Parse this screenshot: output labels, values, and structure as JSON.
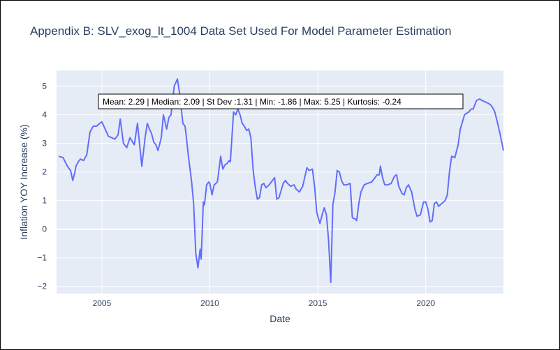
{
  "title": "Appendix B: SLV_exog_lt_1004 Data Set Used For Model Parameter Estimation",
  "chart_data": {
    "type": "line",
    "title": "Appendix B: SLV_exog_lt_1004 Data Set Used For Model Parameter Estimation",
    "xlabel": "Date",
    "ylabel": "Inflation YOY Increase (%)",
    "xlim": [
      2002.9,
      2023.6
    ],
    "ylim": [
      -2.25,
      5.55
    ],
    "xticks": [
      2005,
      2010,
      2015,
      2020
    ],
    "xtick_labels": [
      "2005",
      "2010",
      "2015",
      "2020"
    ],
    "yticks": [
      -2,
      -1,
      0,
      1,
      2,
      3,
      4,
      5
    ],
    "ytick_labels": [
      "−2",
      "−1",
      "0",
      "1",
      "2",
      "3",
      "4",
      "5"
    ],
    "grid": true,
    "legend": "none",
    "line_color": "#636efa",
    "plot_bgcolor": "#e5ecf6",
    "annotation": "Mean: 2.29 | Median: 2.09 | St Dev :1.31 | Min: -1.86 | Max: 5.25 | Kurtosis: -0.24",
    "series": [
      {
        "x": [
          2003.0,
          2003.2,
          2003.4,
          2003.55,
          2003.65,
          2003.75,
          2003.8,
          2003.9,
          2004.0,
          2004.15,
          2004.3,
          2004.45,
          2004.6,
          2004.75,
          2004.9,
          2005.0,
          2005.15,
          2005.3,
          2005.45,
          2005.6,
          2005.75,
          2005.85,
          2006.0,
          2006.15,
          2006.3,
          2006.5,
          2006.65,
          2006.85,
          2007.0,
          2007.1,
          2007.2,
          2007.3,
          2007.4,
          2007.5,
          2007.6,
          2007.75,
          2007.85,
          2008.0,
          2008.1,
          2008.2,
          2008.35,
          2008.5,
          2008.6,
          2008.75,
          2008.85,
          2008.9,
          2009.0,
          2009.15,
          2009.25,
          2009.35,
          2009.45,
          2009.55,
          2009.6,
          2009.7,
          2009.75,
          2009.85,
          2009.95,
          2010.0,
          2010.1,
          2010.2,
          2010.35,
          2010.5,
          2010.6,
          2010.7,
          2010.8,
          2010.9,
          2010.95,
          2011.1,
          2011.2,
          2011.3,
          2011.4,
          2011.5,
          2011.6,
          2011.7,
          2011.8,
          2011.9,
          2012.0,
          2012.1,
          2012.2,
          2012.3,
          2012.4,
          2012.5,
          2012.6,
          2012.75,
          2012.9,
          2013.0,
          2013.1,
          2013.2,
          2013.4,
          2013.5,
          2013.6,
          2013.75,
          2013.9,
          2014.0,
          2014.15,
          2014.3,
          2014.5,
          2014.6,
          2014.75,
          2014.85,
          2014.95,
          2015.0,
          2015.1,
          2015.2,
          2015.3,
          2015.4,
          2015.5,
          2015.6,
          2015.7,
          2015.8,
          2015.9,
          2016.0,
          2016.1,
          2016.2,
          2016.35,
          2016.5,
          2016.6,
          2016.75,
          2016.8,
          2016.9,
          2017.0,
          2017.15,
          2017.3,
          2017.5,
          2017.6,
          2017.75,
          2017.85,
          2017.9,
          2018.0,
          2018.1,
          2018.25,
          2018.4,
          2018.55,
          2018.65,
          2018.75,
          2018.9,
          2019.0,
          2019.1,
          2019.2,
          2019.35,
          2019.5,
          2019.6,
          2019.75,
          2019.9,
          2020.0,
          2020.1,
          2020.2,
          2020.3,
          2020.4,
          2020.5,
          2020.6,
          2020.75,
          2020.9,
          2021.0,
          2021.1,
          2021.2,
          2021.35,
          2021.5,
          2021.6,
          2021.7,
          2021.8,
          2021.9,
          2022.0,
          2022.1,
          2022.2,
          2022.35,
          2022.5,
          2022.6,
          2022.75,
          2022.9,
          2023.0,
          2023.1,
          2023.2,
          2023.3,
          2023.45,
          2023.6
        ],
        "y": [
          2.55,
          2.5,
          2.2,
          2.05,
          1.7,
          2.0,
          2.2,
          2.35,
          2.45,
          2.4,
          2.6,
          3.4,
          3.6,
          3.6,
          3.7,
          3.75,
          3.5,
          3.25,
          3.2,
          3.15,
          3.3,
          3.85,
          3.0,
          2.85,
          3.2,
          2.95,
          3.7,
          2.2,
          3.2,
          3.7,
          3.5,
          3.35,
          3.05,
          2.95,
          2.75,
          3.2,
          4.0,
          3.5,
          3.9,
          4.0,
          5.0,
          5.25,
          4.75,
          3.7,
          3.6,
          3.3,
          2.6,
          1.7,
          0.9,
          -0.85,
          -1.35,
          -0.7,
          -1.05,
          0.95,
          0.85,
          1.55,
          1.65,
          1.6,
          1.2,
          1.55,
          1.65,
          2.55,
          2.1,
          2.25,
          2.3,
          2.4,
          2.35,
          4.1,
          4.0,
          4.2,
          4.0,
          3.7,
          3.6,
          3.45,
          3.5,
          3.2,
          2.1,
          1.5,
          1.05,
          1.1,
          1.55,
          1.6,
          1.45,
          1.55,
          1.7,
          1.8,
          1.05,
          1.1,
          1.6,
          1.7,
          1.6,
          1.5,
          1.55,
          1.4,
          1.3,
          1.5,
          2.15,
          2.05,
          2.1,
          1.5,
          0.6,
          0.45,
          0.2,
          0.5,
          0.75,
          0.5,
          -0.4,
          -1.86,
          0.85,
          1.3,
          2.05,
          2.0,
          1.7,
          1.55,
          1.55,
          1.6,
          0.4,
          0.35,
          0.3,
          0.9,
          1.3,
          1.55,
          1.6,
          1.65,
          1.75,
          1.9,
          1.9,
          2.2,
          1.8,
          1.55,
          1.55,
          1.6,
          1.85,
          1.9,
          1.5,
          1.25,
          1.2,
          1.45,
          1.55,
          1.3,
          0.7,
          0.45,
          0.5,
          0.95,
          0.95,
          0.7,
          0.25,
          0.3,
          0.9,
          0.95,
          0.8,
          0.9,
          1.0,
          1.2,
          2.0,
          2.55,
          2.5,
          2.95,
          3.5,
          3.75,
          4.0,
          4.05,
          4.1,
          4.2,
          4.2,
          4.5,
          4.55,
          4.5,
          4.45,
          4.4,
          4.35,
          4.25,
          4.1,
          3.8,
          3.3,
          2.75
        ]
      }
    ]
  }
}
